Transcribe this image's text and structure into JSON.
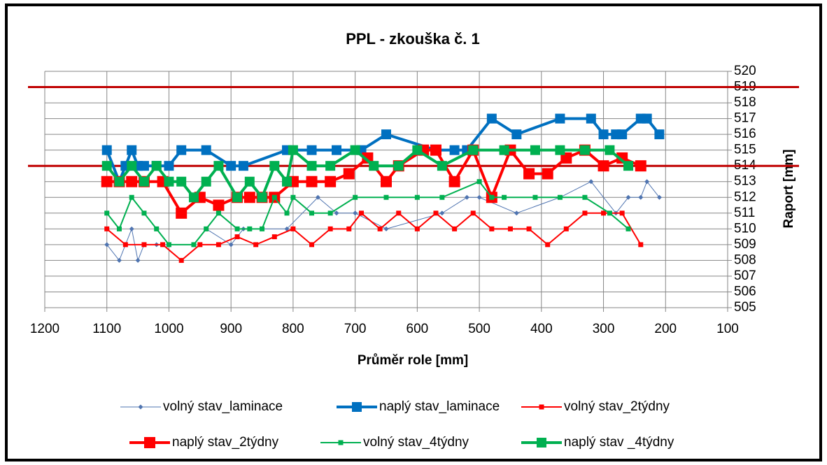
{
  "chart_data": {
    "type": "line",
    "title": "PPL - zkouška č. 1",
    "x_label": "Průměr role [mm]",
    "y_label": "Raport [mm]",
    "xlim": [
      1200,
      100
    ],
    "xticks": [
      1200,
      1100,
      1000,
      900,
      800,
      700,
      600,
      500,
      400,
      300,
      200,
      100
    ],
    "ylim": [
      505,
      520
    ],
    "yticks": [
      505,
      506,
      507,
      508,
      509,
      510,
      511,
      512,
      513,
      514,
      515,
      516,
      517,
      518,
      519,
      520
    ],
    "y_axis_side": "right",
    "grid": true,
    "legend": "bottom",
    "reference_lines": [
      {
        "value": 519,
        "color": "#c00000"
      },
      {
        "value": 514,
        "color": "#c00000"
      }
    ],
    "series": [
      {
        "name": "volný stav_laminace",
        "color": "#4f74b0",
        "marker": "diamond",
        "line_width": 1,
        "marker_size": 7,
        "x": [
          1100,
          1080,
          1060,
          1050,
          1040,
          1020,
          1010,
          960,
          940,
          900,
          880,
          810,
          760,
          730,
          700,
          650,
          560,
          520,
          500,
          440,
          370,
          320,
          280,
          260,
          240,
          230,
          210
        ],
        "values": [
          509,
          508,
          510,
          508,
          509,
          509,
          509,
          509,
          510,
          509,
          510,
          510,
          512,
          511,
          511,
          510,
          511,
          512,
          512,
          511,
          512,
          513,
          511,
          512,
          512,
          513,
          512
        ]
      },
      {
        "name": "naplý stav_laminace",
        "color": "#0070c0",
        "marker": "square",
        "line_width": 4,
        "marker_size": 14,
        "x": [
          1100,
          1080,
          1070,
          1060,
          1050,
          1040,
          1020,
          1000,
          980,
          940,
          900,
          880,
          810,
          770,
          730,
          690,
          650,
          570,
          540,
          520,
          480,
          440,
          370,
          320,
          300,
          280,
          270,
          240,
          230,
          210
        ],
        "values": [
          515,
          513,
          514,
          515,
          514,
          514,
          514,
          514,
          515,
          515,
          514,
          514,
          515,
          515,
          515,
          515,
          516,
          515,
          515,
          515,
          517,
          516,
          517,
          517,
          516,
          516,
          516,
          517,
          517,
          516
        ]
      },
      {
        "name": "volný stav_2týdny",
        "color": "#ff0000",
        "marker": "square",
        "line_width": 2,
        "marker_size": 7,
        "x": [
          1100,
          1070,
          1040,
          1010,
          980,
          950,
          920,
          890,
          860,
          830,
          800,
          770,
          740,
          710,
          690,
          660,
          630,
          600,
          570,
          540,
          510,
          480,
          450,
          420,
          390,
          360,
          330,
          300,
          270,
          240
        ],
        "values": [
          510,
          509,
          509,
          509,
          508,
          509,
          509,
          509.5,
          509,
          509.5,
          510,
          509,
          510,
          510,
          511,
          510,
          511,
          510,
          511,
          510,
          511,
          510,
          510,
          510,
          509,
          510,
          511,
          511,
          511,
          509
        ]
      },
      {
        "name": "naplý stav_2týdny",
        "color": "#ff0000",
        "marker": "square",
        "line_width": 4,
        "marker_size": 16,
        "x": [
          1100,
          1080,
          1060,
          1040,
          1010,
          980,
          950,
          920,
          890,
          870,
          850,
          830,
          800,
          770,
          740,
          710,
          680,
          650,
          630,
          590,
          570,
          540,
          510,
          480,
          450,
          420,
          390,
          360,
          330,
          300,
          270,
          240
        ],
        "values": [
          513,
          513,
          513,
          513,
          513,
          511,
          512,
          511.5,
          512,
          512,
          512,
          512,
          513,
          513,
          513,
          513.5,
          514.5,
          513,
          514,
          515,
          515,
          513,
          515,
          512,
          515,
          513.5,
          513.5,
          514.5,
          515,
          514,
          514.5,
          514
        ]
      },
      {
        "name": "volný stav_4týdny",
        "color": "#00b050",
        "marker": "square",
        "line_width": 2,
        "marker_size": 7,
        "x": [
          1100,
          1080,
          1060,
          1040,
          1020,
          1000,
          960,
          940,
          920,
          890,
          870,
          850,
          830,
          810,
          800,
          770,
          740,
          700,
          650,
          600,
          560,
          500,
          480,
          460,
          410,
          370,
          330,
          290,
          260
        ],
        "values": [
          511,
          510,
          512,
          511,
          510,
          509,
          509,
          510,
          511,
          510,
          510,
          510,
          512,
          511,
          512,
          511,
          511,
          512,
          512,
          512,
          512,
          513,
          512,
          512,
          512,
          512,
          512,
          511,
          510
        ]
      },
      {
        "name": "naplý stav _4týdny",
        "color": "#00b050",
        "marker": "square",
        "line_width": 4,
        "marker_size": 14,
        "x": [
          1100,
          1080,
          1060,
          1040,
          1020,
          1000,
          980,
          960,
          940,
          920,
          890,
          870,
          850,
          830,
          810,
          800,
          770,
          740,
          700,
          670,
          630,
          600,
          560,
          510,
          460,
          410,
          370,
          330,
          290,
          260
        ],
        "values": [
          514,
          513,
          514,
          513,
          514,
          513,
          513,
          512,
          513,
          514,
          512,
          513,
          512,
          514,
          513,
          515,
          514,
          514,
          515,
          514,
          514,
          515,
          514,
          515,
          515,
          515,
          515,
          515,
          515,
          514
        ]
      }
    ]
  }
}
